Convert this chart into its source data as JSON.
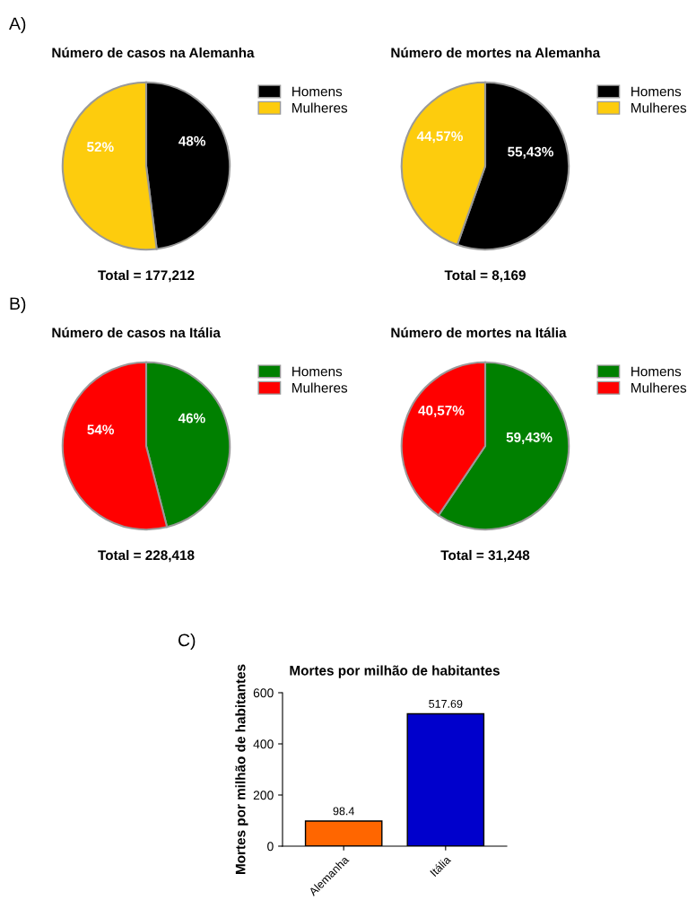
{
  "chart_data": [
    {
      "type": "pie",
      "title": "Número de casos na Alemanha",
      "categories": [
        "Homens",
        "Mulheres"
      ],
      "values": [
        48,
        52
      ],
      "value_labels": [
        "48%",
        "52%"
      ],
      "colors": [
        "#000000",
        "#fdcc0d"
      ],
      "legend": "top right",
      "annotations": [
        "A)",
        "Total = 177,212"
      ]
    },
    {
      "type": "pie",
      "title": "Número de mortes na Alemanha",
      "categories": [
        "Homens",
        "Mulheres"
      ],
      "values": [
        55.43,
        44.57
      ],
      "value_labels": [
        "55,43%",
        "44,57%"
      ],
      "colors": [
        "#000000",
        "#fdcc0d"
      ],
      "legend": "top right",
      "annotations": [
        "Total = 8,169"
      ]
    },
    {
      "type": "pie",
      "title": "Número de casos na Itália",
      "categories": [
        "Homens",
        "Mulheres"
      ],
      "values": [
        46,
        54
      ],
      "value_labels": [
        "46%",
        "54%"
      ],
      "colors": [
        "#008000",
        "#ff0000"
      ],
      "legend": "top right",
      "annotations": [
        "B)",
        "Total = 228,418"
      ]
    },
    {
      "type": "pie",
      "title": "Número de mortes na Itália",
      "categories": [
        "Homens",
        "Mulheres"
      ],
      "values": [
        59.43,
        40.57
      ],
      "value_labels": [
        "59,43%",
        "40,57%"
      ],
      "colors": [
        "#008000",
        "#ff0000"
      ],
      "legend": "top right",
      "annotations": [
        "Total = 31,248"
      ]
    },
    {
      "type": "bar",
      "title": "Mortes por milhão de habitantes",
      "ylabel": "Mortes por milhão de habitantes",
      "categories": [
        "Alemanha",
        "Itália"
      ],
      "values": [
        98.4,
        517.69
      ],
      "colors": [
        "#ff6600",
        "#0000cc"
      ],
      "ylim": [
        0,
        600
      ],
      "yticks": [
        0,
        200,
        400,
        600
      ],
      "data_labels": true,
      "annotations": [
        "C)"
      ]
    }
  ]
}
